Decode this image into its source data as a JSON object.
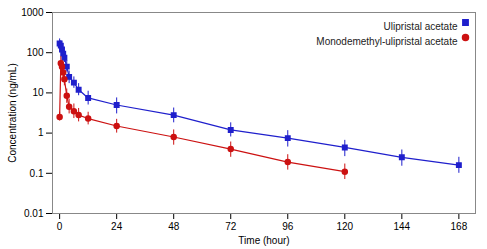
{
  "chart_data": {
    "type": "line",
    "xlabel": "Time (hour)",
    "ylabel": "Concentration (ng/mL)",
    "log": "y",
    "grid": false,
    "legend": "upper right",
    "xlim": [
      -3,
      175
    ],
    "xticks": [
      0,
      24,
      48,
      72,
      96,
      120,
      144,
      168
    ],
    "ylim": [
      0.01,
      1000
    ],
    "yticks": [
      0.01,
      0.1,
      1,
      10,
      100,
      1000
    ],
    "series": [
      {
        "name": "Ulipristal acetate",
        "color": "#1F1FCC",
        "marker": "square",
        "x": [
          0,
          0.5,
          1,
          1.5,
          2,
          3,
          4,
          6,
          8,
          12,
          24,
          48,
          72,
          96,
          120,
          144,
          168
        ],
        "values": [
          170,
          150,
          120,
          95,
          75,
          45,
          25,
          18,
          12,
          7.5,
          5.0,
          2.8,
          1.2,
          0.75,
          0.44,
          0.25,
          0.16
        ],
        "yerr_lo": [
          30,
          35,
          28,
          22,
          18,
          12,
          8,
          5,
          3.5,
          2.5,
          2.0,
          1.0,
          0.4,
          0.3,
          0.18,
          0.1,
          0.06
        ],
        "yerr_hi": [
          50,
          50,
          45,
          35,
          28,
          18,
          10,
          7,
          5,
          3.5,
          2.5,
          1.4,
          0.6,
          0.4,
          0.22,
          0.13,
          0.09
        ]
      },
      {
        "name": "Monodemethyl-ulipristal acetate",
        "color": "#CC1111",
        "marker": "circle",
        "x": [
          0,
          0.5,
          1,
          1.5,
          2,
          3,
          4,
          6,
          8,
          12,
          24,
          48,
          72,
          96,
          120
        ],
        "values": [
          2.5,
          55,
          45,
          32,
          22,
          8.5,
          4.5,
          3.5,
          2.8,
          2.3,
          1.5,
          0.8,
          0.4,
          0.19,
          0.11
        ],
        "yerr_lo": [
          0.5,
          18,
          14,
          10,
          7,
          3,
          1.5,
          1.2,
          0.9,
          0.7,
          0.5,
          0.3,
          0.15,
          0.07,
          0.04
        ],
        "yerr_hi": [
          0.8,
          25,
          20,
          15,
          10,
          4,
          2.5,
          1.8,
          1.3,
          1.0,
          0.7,
          0.4,
          0.2,
          0.1,
          0.06
        ]
      }
    ]
  }
}
